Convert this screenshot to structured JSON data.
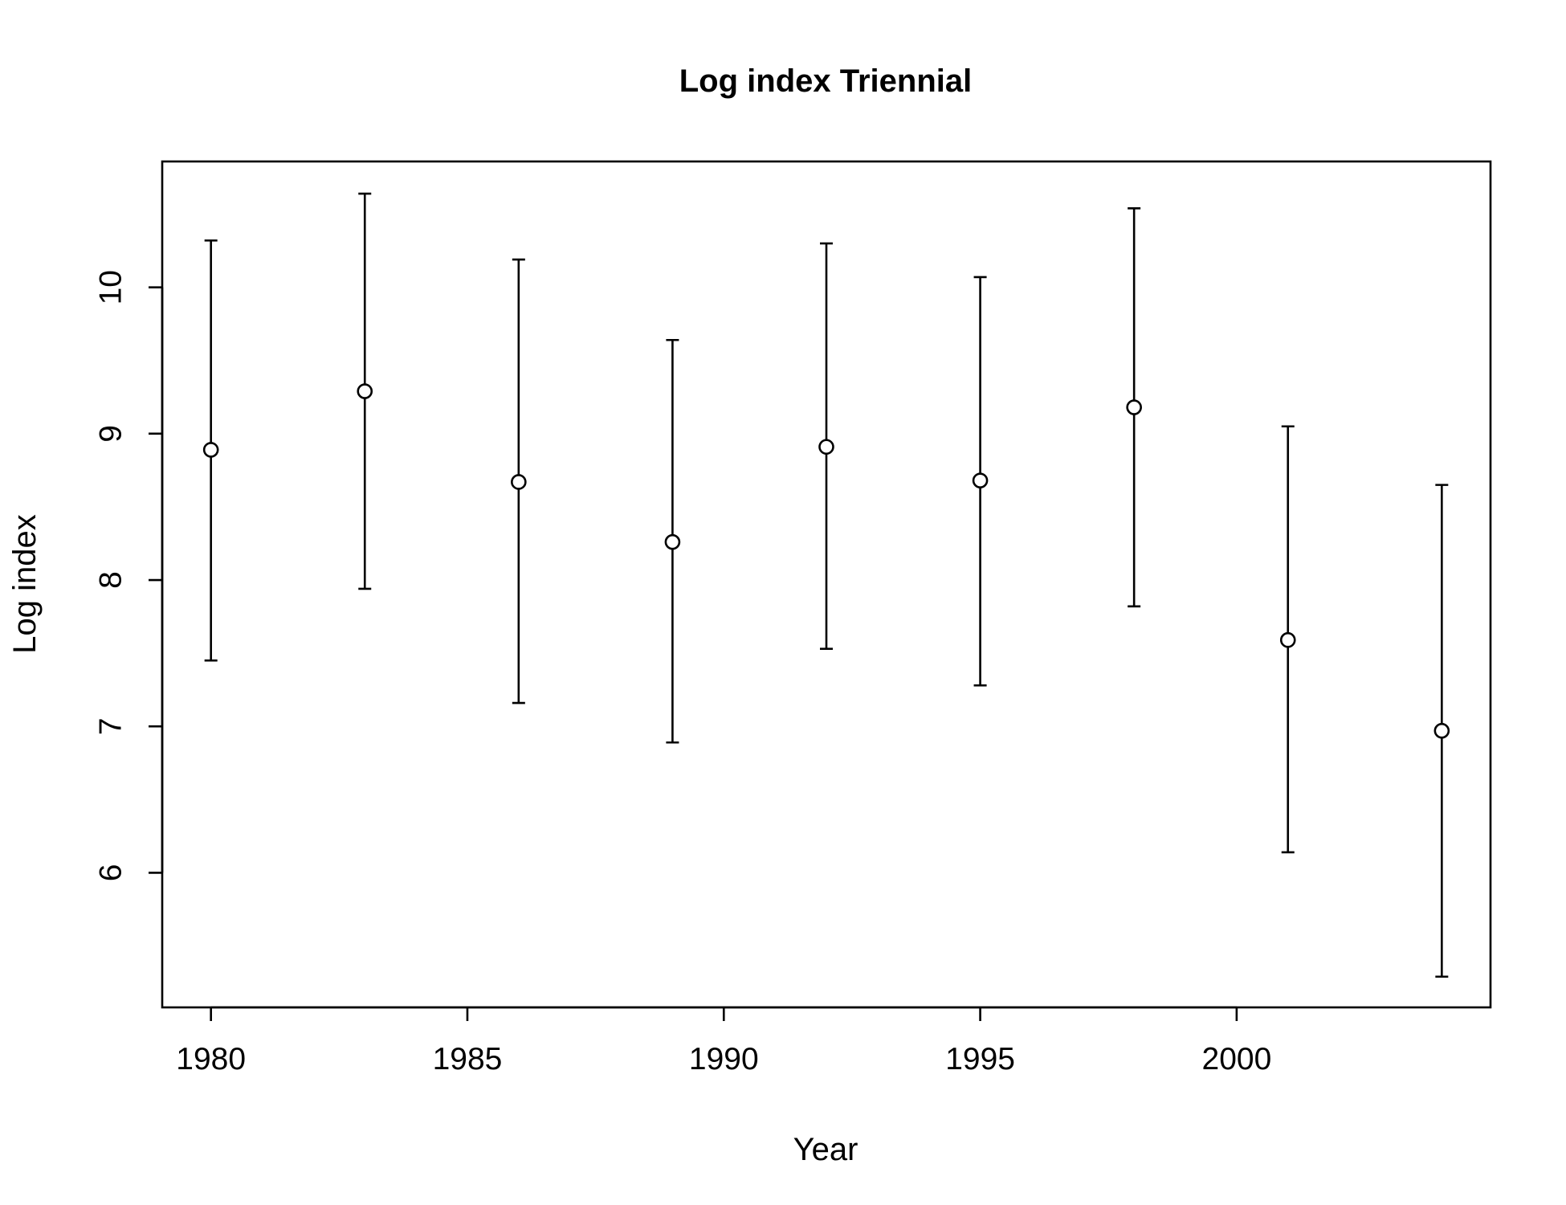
{
  "chart_data": {
    "type": "scatter",
    "title": "Log index Triennial",
    "xlabel": "Year",
    "ylabel": "Log index",
    "xlim": [
      1979.05,
      2004.95
    ],
    "ylim": [
      5.08,
      10.86
    ],
    "xticks": [
      1980,
      1985,
      1990,
      1995,
      2000
    ],
    "yticks": [
      6,
      7,
      8,
      9,
      10
    ],
    "grid": false,
    "legend": "none",
    "points": [
      {
        "x": 1980,
        "y": 8.89,
        "lower": 7.45,
        "upper": 10.32
      },
      {
        "x": 1983,
        "y": 9.29,
        "lower": 7.94,
        "upper": 10.64
      },
      {
        "x": 1986,
        "y": 8.67,
        "lower": 7.16,
        "upper": 10.19
      },
      {
        "x": 1989,
        "y": 8.26,
        "lower": 6.89,
        "upper": 9.64
      },
      {
        "x": 1992,
        "y": 8.91,
        "lower": 7.53,
        "upper": 10.3
      },
      {
        "x": 1995,
        "y": 8.68,
        "lower": 7.28,
        "upper": 10.07
      },
      {
        "x": 1998,
        "y": 9.18,
        "lower": 7.82,
        "upper": 10.54
      },
      {
        "x": 2001,
        "y": 7.59,
        "lower": 6.14,
        "upper": 9.05
      },
      {
        "x": 2004,
        "y": 6.97,
        "lower": 5.29,
        "upper": 8.65
      }
    ],
    "colors": {
      "point_fill": "#ffffff",
      "stroke": "#000000"
    }
  }
}
